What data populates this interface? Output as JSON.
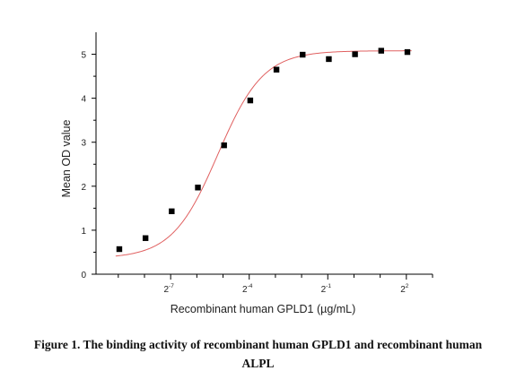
{
  "chart_data": {
    "type": "scatter",
    "xlabel": "Recombinant human GPLD1 (µg/mL)",
    "ylabel": "Mean OD value",
    "x_scale": "log2",
    "xlim_log2": [
      -9.85,
      3.0
    ],
    "ylim": [
      0,
      5.5
    ],
    "y_ticks": [
      0,
      1,
      2,
      3,
      4,
      5
    ],
    "x_ticks": [
      {
        "base": "2",
        "exp": "-7",
        "log2": -7
      },
      {
        "base": "2",
        "exp": "-4",
        "log2": -4
      },
      {
        "base": "2",
        "exp": "-1",
        "log2": -1
      },
      {
        "base": "2",
        "exp": "2",
        "log2": 2
      }
    ],
    "points": [
      {
        "log2x": -8.96,
        "y": 0.57
      },
      {
        "log2x": -7.96,
        "y": 0.82
      },
      {
        "log2x": -6.96,
        "y": 1.43
      },
      {
        "log2x": -5.96,
        "y": 1.97
      },
      {
        "log2x": -4.96,
        "y": 2.93
      },
      {
        "log2x": -3.96,
        "y": 3.95
      },
      {
        "log2x": -2.96,
        "y": 4.65
      },
      {
        "log2x": -1.96,
        "y": 4.99
      },
      {
        "log2x": -0.96,
        "y": 4.89
      },
      {
        "log2x": 0.04,
        "y": 5.0
      },
      {
        "log2x": 1.04,
        "y": 5.08
      },
      {
        "log2x": 2.04,
        "y": 5.05
      }
    ],
    "fit": {
      "bottom": 0.36,
      "top": 5.08,
      "log2_ec50": -5.2,
      "slope_log2": 0.5
    },
    "marker_color": "#000000",
    "curve_color": "#e06060"
  },
  "caption": {
    "line1": "Figure 1. The binding activity of recombinant human GPLD1 and recombinant human",
    "line2": "ALPL"
  }
}
